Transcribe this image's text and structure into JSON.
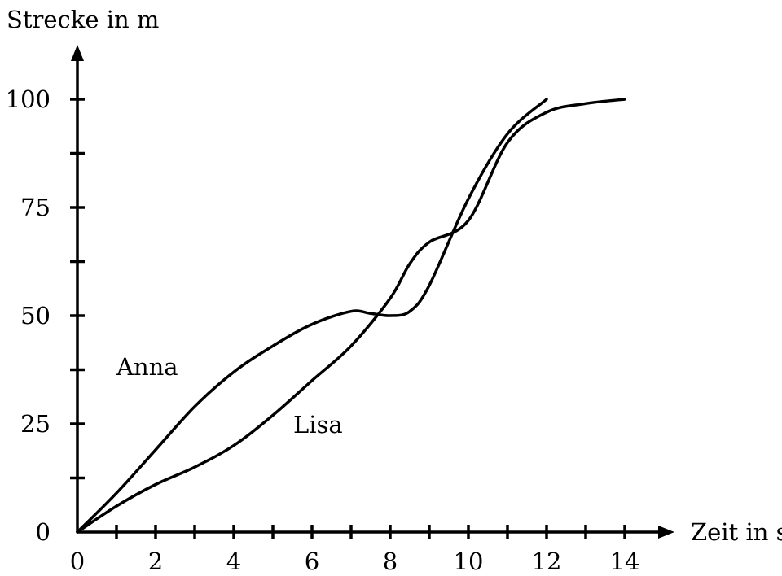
{
  "chart_data": {
    "type": "line",
    "xlabel": "Zeit in s",
    "ylabel": "Strecke in m",
    "xlim": [
      0,
      15
    ],
    "ylim": [
      0,
      100
    ],
    "x_ticks": [
      0,
      2,
      4,
      6,
      8,
      10,
      12,
      14
    ],
    "x_minor_ticks": [
      1,
      3,
      5,
      7,
      9,
      11,
      13
    ],
    "y_ticks": [
      0,
      25,
      50,
      75,
      100
    ],
    "y_minor_ticks": [
      12.5,
      37.5,
      62.5,
      87.5
    ],
    "grid": false,
    "legend": "none",
    "series": [
      {
        "name": "Anna",
        "x": [
          0,
          1,
          2,
          3,
          4,
          5,
          6,
          7,
          7.5,
          8,
          8.5,
          9,
          10,
          11,
          12
        ],
        "y": [
          0,
          9,
          19,
          29,
          37,
          43,
          48,
          51,
          50.5,
          50,
          51,
          57,
          77,
          92,
          100
        ]
      },
      {
        "name": "Lisa",
        "x": [
          0,
          1,
          2,
          3,
          4,
          5,
          6,
          7,
          8,
          8.5,
          9,
          10,
          11,
          12,
          13,
          14
        ],
        "y": [
          0,
          6,
          11,
          15,
          20,
          27,
          35,
          43,
          54,
          62,
          67,
          72,
          90,
          97,
          99,
          100
        ]
      }
    ]
  }
}
